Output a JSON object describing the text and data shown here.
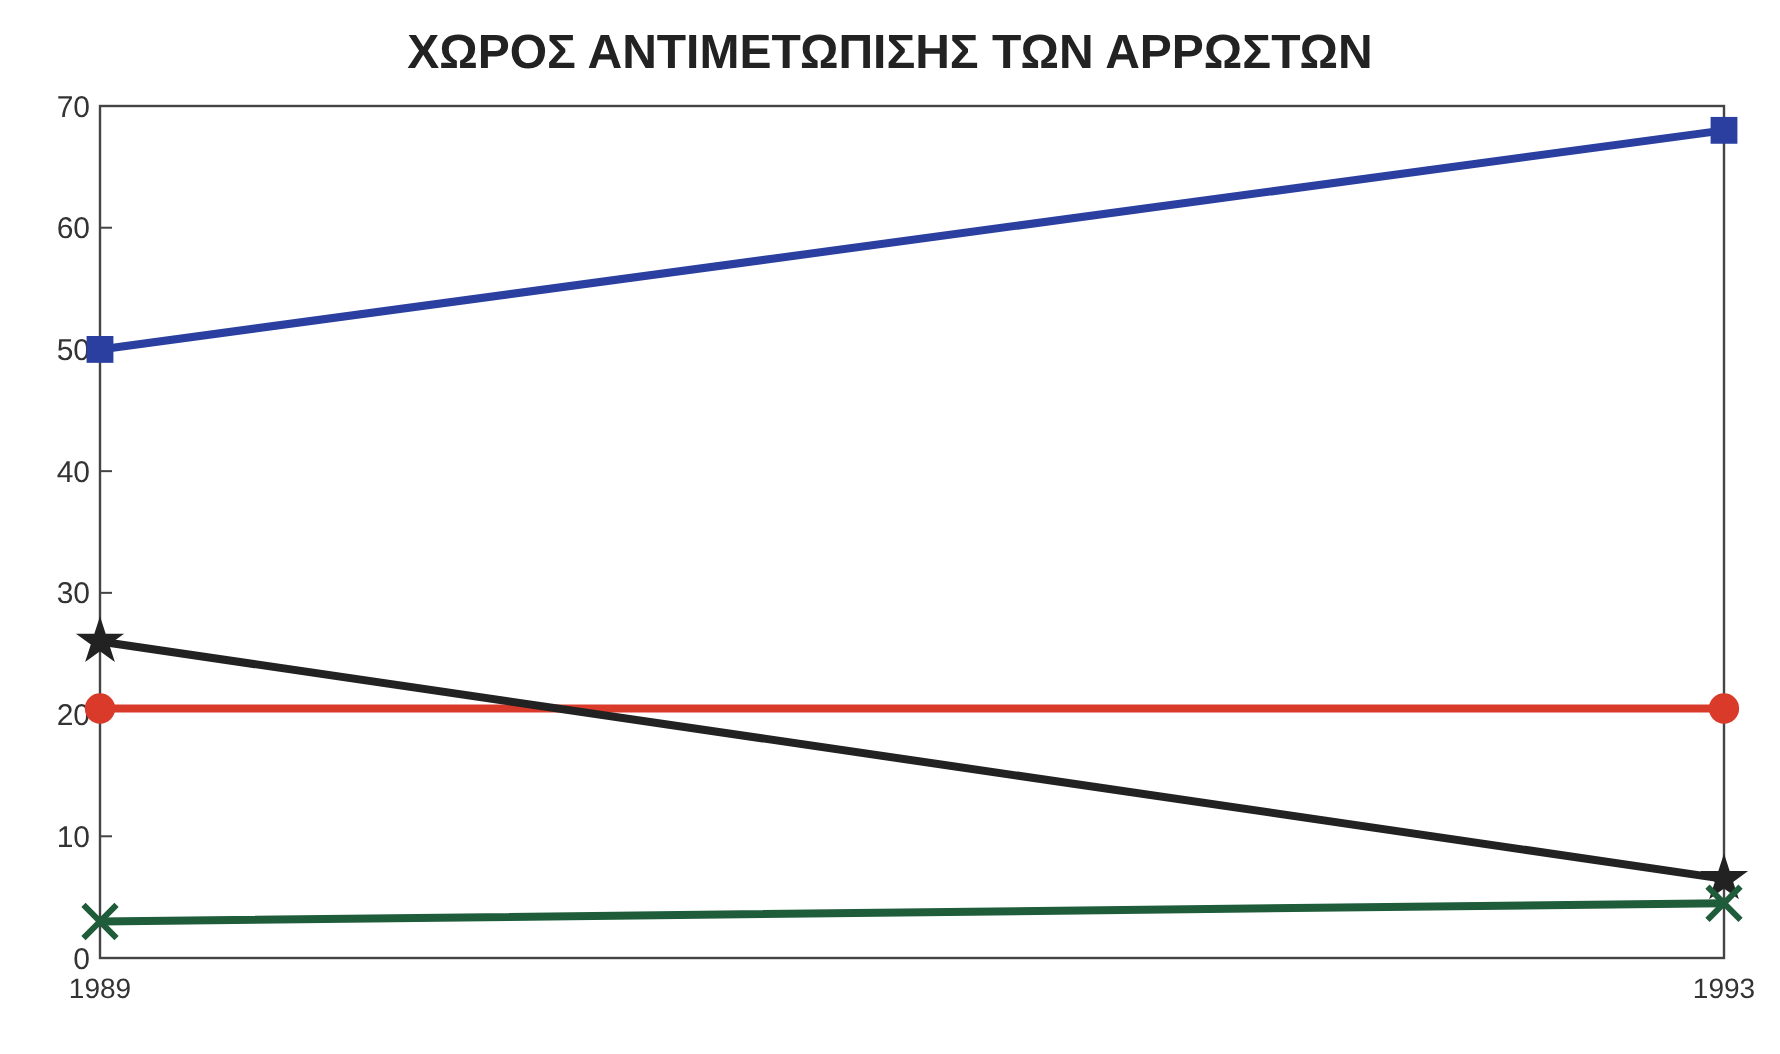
{
  "chart_data": {
    "type": "line",
    "title": "ΧΩΡΟΣ ΑΝΤΙΜΕΤΩΠΙΣΗΣ ΤΩΝ ΑΡΡΩΣΤΩΝ",
    "x": [
      1989,
      1993
    ],
    "xlim": [
      1989,
      1993
    ],
    "xticks": [
      1989,
      1993
    ],
    "ylim": [
      0,
      70
    ],
    "yticks": [
      0,
      10,
      20,
      30,
      40,
      50,
      60,
      70
    ],
    "grid": false,
    "series": [
      {
        "color": "#2a3fa0",
        "values": [
          50,
          68
        ],
        "marker": "square"
      },
      {
        "color": "#d93a2a",
        "values": [
          20.5,
          20.5
        ],
        "marker": "circle"
      },
      {
        "color": "#222222",
        "values": [
          26,
          6.5
        ],
        "marker": "star"
      },
      {
        "color": "#1e5c3a",
        "values": [
          3,
          4.5
        ],
        "marker": "cross"
      }
    ]
  }
}
